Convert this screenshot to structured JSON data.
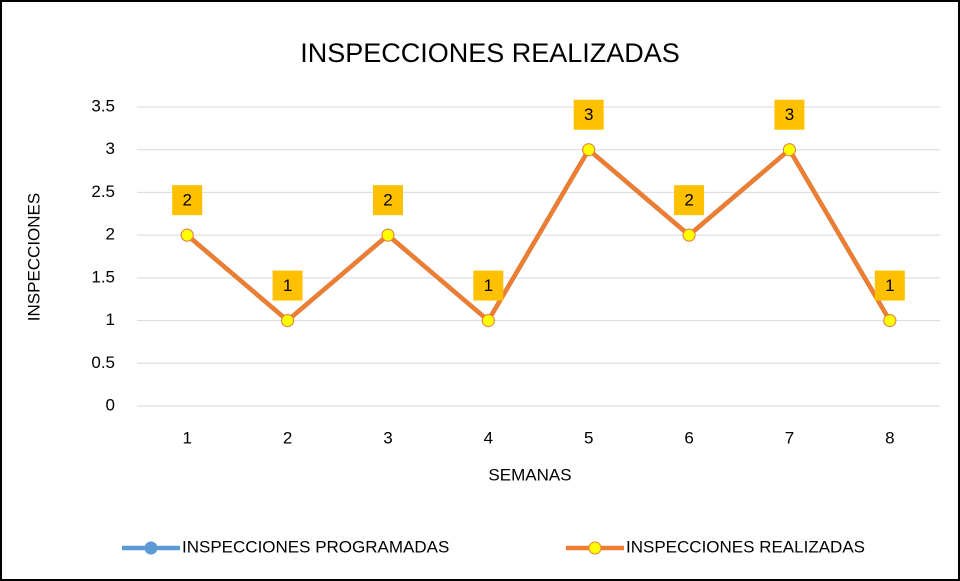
{
  "chart_data": {
    "type": "line",
    "title": "INSPECCIONES REALIZADAS",
    "x_label": "SEMANAS",
    "y_label": "INSPECCIONES",
    "categories": [
      "1",
      "2",
      "3",
      "4",
      "5",
      "6",
      "7",
      "8"
    ],
    "series": [
      {
        "name": "INSPECCIONES PROGRAMADAS",
        "color": "#5b9bd5",
        "marker_color": "#5b9bd5",
        "values": [
          2,
          1,
          2,
          1,
          3,
          2,
          3,
          1
        ]
      },
      {
        "name": "INSPECCIONES REALIZADAS",
        "color": "#ed7d31",
        "marker_color": "#ffff00",
        "label_color": "#ffc000",
        "data_labels": true,
        "values": [
          2,
          1,
          2,
          1,
          3,
          2,
          3,
          1
        ]
      }
    ],
    "ylim": [
      0,
      3.5
    ],
    "yticks": [
      0,
      0.5,
      1,
      1.5,
      2,
      2.5,
      3,
      3.5
    ],
    "grid": true,
    "legend": "bottom"
  }
}
